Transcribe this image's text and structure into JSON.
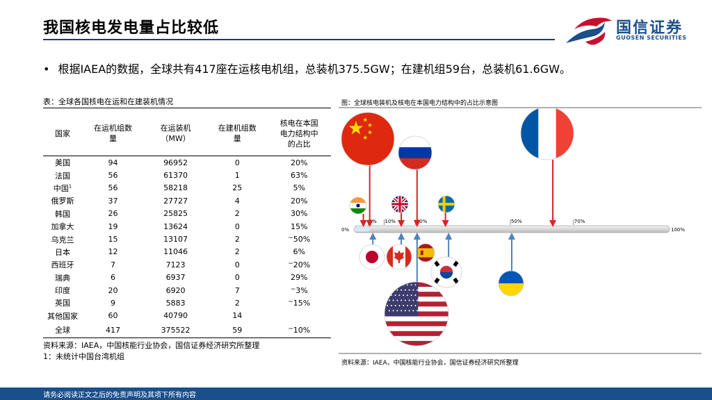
{
  "page": {
    "title": "我国核电发电量占比较低",
    "bullet": "根据IAEA的数据，全球共有417座在运核电机组，总装机375.5GW；在建机组59台，总装机61.6GW。",
    "footer": "请务必阅读正文之后的免责声明及其项下所有内容"
  },
  "logo": {
    "name_cn": "国信证券",
    "name_en": "GUOSEN SECURITIES",
    "colors": [
      "#c8102e",
      "#1a4f8b"
    ]
  },
  "table": {
    "caption": "表：全球各国核电在运和在建装机情况",
    "headers": [
      "国家",
      "在运机组数量",
      "在运装机（MW）",
      "在建机组数量",
      "核电在本国电力结构中的占比"
    ],
    "rows": [
      {
        "country": "美国",
        "operating_units": "94",
        "operating_mw": "96952",
        "construction_units": "0",
        "share": "20%"
      },
      {
        "country": "法国",
        "operating_units": "56",
        "operating_mw": "61370",
        "construction_units": "1",
        "share": "63%"
      },
      {
        "country": "中国",
        "note": "1",
        "operating_units": "56",
        "operating_mw": "58218",
        "construction_units": "25",
        "share": "5%"
      },
      {
        "country": "俄罗斯",
        "operating_units": "37",
        "operating_mw": "27727",
        "construction_units": "4",
        "share": "20%"
      },
      {
        "country": "韩国",
        "operating_units": "26",
        "operating_mw": "25825",
        "construction_units": "2",
        "share": "30%"
      },
      {
        "country": "加拿大",
        "operating_units": "19",
        "operating_mw": "13624",
        "construction_units": "0",
        "share": "15%"
      },
      {
        "country": "乌克兰",
        "operating_units": "15",
        "operating_mw": "13107",
        "construction_units": "2",
        "share": "50%",
        "approx": true
      },
      {
        "country": "日本",
        "operating_units": "12",
        "operating_mw": "11046",
        "construction_units": "2",
        "share": "6%"
      },
      {
        "country": "西班牙",
        "operating_units": "7",
        "operating_mw": "7123",
        "construction_units": "0",
        "share": "20%",
        "approx": true
      },
      {
        "country": "瑞典",
        "operating_units": "6",
        "operating_mw": "6937",
        "construction_units": "0",
        "share": "29%"
      },
      {
        "country": "印度",
        "operating_units": "20",
        "operating_mw": "6920",
        "construction_units": "7",
        "share": "3%",
        "approx": true
      },
      {
        "country": "英国",
        "operating_units": "9",
        "operating_mw": "5883",
        "construction_units": "2",
        "share": "15%",
        "approx": true
      },
      {
        "country": "其他国家",
        "operating_units": "60",
        "operating_mw": "40790",
        "construction_units": "14",
        "share": ""
      },
      {
        "country": "全球",
        "operating_units": "417",
        "operating_mw": "375522",
        "construction_units": "59",
        "share": "10%",
        "approx": true,
        "total": true
      }
    ],
    "approx_symbol": "~",
    "source_line1": "资料来源：IAEA，中国核能行业协会，国信证券经济研究所整理",
    "source_line2": "1：未统计中国台湾机组"
  },
  "figure": {
    "caption": "图：全球核电装机及核电在本国电力结构中的占比示意图",
    "source": "资料来源：IAEA，中国核能行业协会，国信证券经济研究所整理",
    "axis_min_label": "0%",
    "axis_max_label": "100%",
    "tick_labels": [
      {
        "value": 5,
        "label": "5%"
      },
      {
        "value": 10,
        "label": "10%"
      },
      {
        "value": 20,
        "label": "20%"
      },
      {
        "value": 50,
        "label": "50%"
      },
      {
        "value": 70,
        "label": "70%"
      }
    ],
    "above_color": "#d9232a",
    "below_color": "#4f81bd",
    "countries": [
      {
        "flag": "china",
        "share": 5,
        "side": "above",
        "size": "large"
      },
      {
        "flag": "russia",
        "share": 20,
        "side": "above",
        "size": "medium"
      },
      {
        "flag": "france",
        "share": 63,
        "side": "above",
        "size": "large"
      },
      {
        "flag": "india",
        "share": 3,
        "side": "above",
        "size": "small"
      },
      {
        "flag": "uk",
        "share": 15,
        "side": "above",
        "size": "small"
      },
      {
        "flag": "sweden",
        "share": 29,
        "side": "above",
        "size": "small"
      },
      {
        "flag": "japan",
        "share": 6,
        "side": "below",
        "size": "small"
      },
      {
        "flag": "canada",
        "share": 15,
        "side": "below",
        "size": "small"
      },
      {
        "flag": "spain",
        "share": 20,
        "side": "below",
        "size": "small"
      },
      {
        "flag": "korea",
        "share": 30,
        "side": "below",
        "size": "small"
      },
      {
        "flag": "usa",
        "share": 20,
        "side": "below",
        "size": "xlarge"
      },
      {
        "flag": "ukraine",
        "share": 50,
        "side": "below",
        "size": "small"
      }
    ]
  }
}
